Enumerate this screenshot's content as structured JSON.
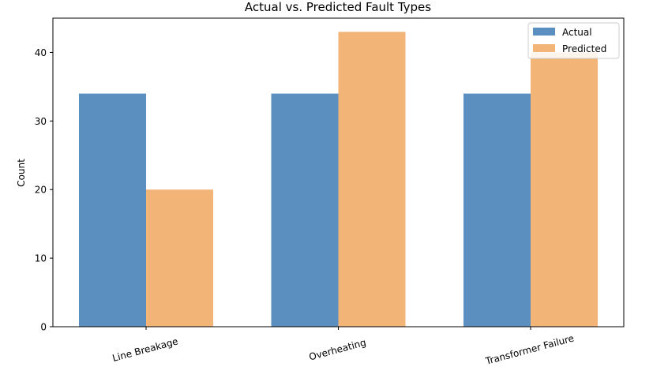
{
  "chart_data": {
    "type": "bar",
    "title": "Actual vs. Predicted Fault Types",
    "xlabel": "",
    "ylabel": "Count",
    "categories": [
      "Line Breakage",
      "Overheating",
      "Transformer Failure"
    ],
    "series": [
      {
        "name": "Actual",
        "values": [
          34,
          34,
          34
        ],
        "color": "#5b8fbf"
      },
      {
        "name": "Predicted",
        "values": [
          20,
          43,
          40
        ],
        "color": "#f2b477"
      }
    ],
    "ylim": [
      0,
      45
    ],
    "yticks": [
      "0",
      "10",
      "20",
      "30",
      "40"
    ],
    "grid": false,
    "legend_position": "top-right"
  }
}
